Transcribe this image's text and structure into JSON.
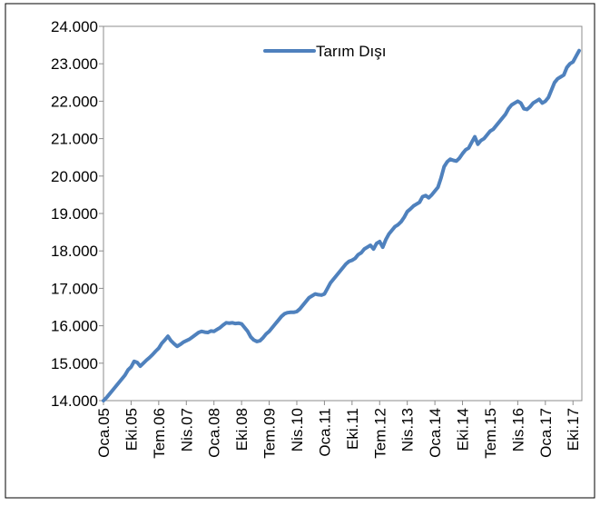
{
  "chart_data": {
    "type": "line",
    "categories": [
      "Oca.05",
      null,
      null,
      null,
      null,
      null,
      null,
      null,
      null,
      "Eki.05",
      null,
      null,
      null,
      null,
      null,
      null,
      null,
      null,
      "Tem.06",
      null,
      null,
      null,
      null,
      null,
      null,
      null,
      null,
      "Nis.07",
      null,
      null,
      null,
      null,
      null,
      null,
      null,
      null,
      "Oca.08",
      null,
      null,
      null,
      null,
      null,
      null,
      null,
      null,
      "Eki.08",
      null,
      null,
      null,
      null,
      null,
      null,
      null,
      null,
      "Tem.09",
      null,
      null,
      null,
      null,
      null,
      null,
      null,
      null,
      "Nis.10",
      null,
      null,
      null,
      null,
      null,
      null,
      null,
      null,
      "Oca.11",
      null,
      null,
      null,
      null,
      null,
      null,
      null,
      null,
      "Eki.11",
      null,
      null,
      null,
      null,
      null,
      null,
      null,
      null,
      "Tem.12",
      null,
      null,
      null,
      null,
      null,
      null,
      null,
      null,
      "Nis.13",
      null,
      null,
      null,
      null,
      null,
      null,
      null,
      null,
      "Oca.14",
      null,
      null,
      null,
      null,
      null,
      null,
      null,
      null,
      "Eki.14",
      null,
      null,
      null,
      null,
      null,
      null,
      null,
      null,
      "Tem.15",
      null,
      null,
      null,
      null,
      null,
      null,
      null,
      null,
      "Nis.16",
      null,
      null,
      null,
      null,
      null,
      null,
      null,
      null,
      "Oca.17",
      null,
      null,
      null,
      null,
      null,
      null,
      null,
      null,
      "Eki.17",
      null,
      null
    ],
    "series": [
      {
        "name": "Tarım Dışı",
        "color": "#4f81bd",
        "values": [
          14000,
          14080,
          14180,
          14280,
          14380,
          14480,
          14580,
          14680,
          14820,
          14900,
          15050,
          15020,
          14920,
          15000,
          15080,
          15150,
          15230,
          15320,
          15400,
          15530,
          15620,
          15720,
          15600,
          15520,
          15450,
          15500,
          15560,
          15600,
          15640,
          15700,
          15760,
          15820,
          15850,
          15830,
          15820,
          15860,
          15850,
          15900,
          15950,
          16020,
          16080,
          16070,
          16080,
          16060,
          16070,
          16050,
          15950,
          15850,
          15700,
          15620,
          15580,
          15600,
          15680,
          15780,
          15850,
          15950,
          16050,
          16150,
          16250,
          16320,
          16350,
          16360,
          16360,
          16380,
          16450,
          16550,
          16650,
          16750,
          16800,
          16850,
          16830,
          16820,
          16850,
          17000,
          17150,
          17250,
          17350,
          17450,
          17550,
          17650,
          17720,
          17750,
          17800,
          17900,
          17950,
          18050,
          18100,
          18150,
          18050,
          18200,
          18250,
          18100,
          18300,
          18450,
          18550,
          18650,
          18700,
          18780,
          18900,
          19050,
          19120,
          19200,
          19250,
          19300,
          19450,
          19480,
          19420,
          19500,
          19600,
          19700,
          19950,
          20250,
          20380,
          20450,
          20420,
          20400,
          20480,
          20600,
          20700,
          20750,
          20900,
          21050,
          20850,
          20950,
          21000,
          21100,
          21200,
          21250,
          21350,
          21450,
          21550,
          21650,
          21800,
          21900,
          21950,
          22000,
          21950,
          21800,
          21780,
          21850,
          21950,
          22000,
          22050,
          21950,
          22000,
          22100,
          22300,
          22500,
          22600,
          22650,
          22700,
          22900,
          23000,
          23050,
          23200,
          23350
        ]
      }
    ],
    "ylim": [
      14000,
      24000
    ],
    "yticks": [
      {
        "value": 14000,
        "label": "14.000"
      },
      {
        "value": 15000,
        "label": "15.000"
      },
      {
        "value": 16000,
        "label": "16.000"
      },
      {
        "value": 17000,
        "label": "17.000"
      },
      {
        "value": 18000,
        "label": "18.000"
      },
      {
        "value": 19000,
        "label": "19.000"
      },
      {
        "value": 20000,
        "label": "20.000"
      },
      {
        "value": 21000,
        "label": "21.000"
      },
      {
        "value": 22000,
        "label": "22.000"
      },
      {
        "value": 23000,
        "label": "23.000"
      },
      {
        "value": 24000,
        "label": "24.000"
      }
    ],
    "grid": false,
    "legend": "top"
  }
}
